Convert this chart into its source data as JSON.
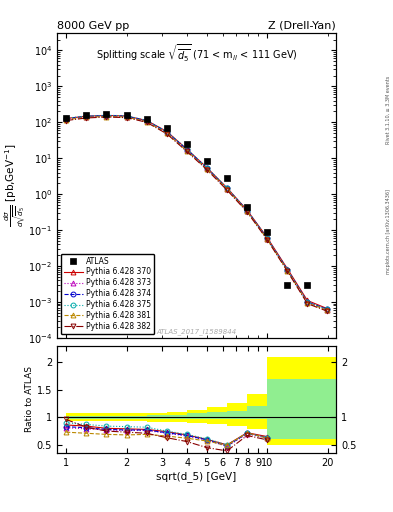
{
  "title_left": "8000 GeV pp",
  "title_right": "Z (Drell-Yan)",
  "plot_title": "Splitting scale $\\sqrt{\\overline{d_5}}$ (71 < m$_{ll}$ < 111 GeV)",
  "ylabel_main": "$\\frac{d\\sigma}{d\\sqrt{d_5}}$ [pb,GeV$^{-1}$]",
  "ylabel_ratio": "Ratio to ATLAS",
  "xlabel": "sqrt(d_5) [GeV]",
  "watermark": "ATLAS_2017_I1589844",
  "right_label": "mcplots.cern.ch [arXiv:1306.3436]",
  "right_label2": "Rivet 3.1.10, ≥ 3.3M events",
  "x_data": [
    1.0,
    1.26,
    1.585,
    2.0,
    2.512,
    3.162,
    3.981,
    5.012,
    6.31,
    7.943,
    10.0,
    12.59,
    15.85,
    19.95
  ],
  "atlas_y": [
    130,
    155,
    170,
    160,
    120,
    70,
    25,
    8.5,
    2.8,
    0.45,
    0.09,
    0.003,
    0.003,
    null
  ],
  "py370_y": [
    128,
    148,
    155,
    150,
    112,
    56,
    18,
    5.5,
    1.5,
    0.36,
    0.062,
    0.0085,
    0.0011,
    0.00065
  ],
  "py373_y": [
    124,
    143,
    150,
    145,
    108,
    53,
    17,
    5.2,
    1.4,
    0.34,
    0.058,
    0.0078,
    0.00098,
    0.0006
  ],
  "py374_y": [
    126,
    146,
    153,
    148,
    110,
    54,
    17.5,
    5.3,
    1.45,
    0.35,
    0.059,
    0.008,
    0.001,
    0.00062
  ],
  "py375_y": [
    130,
    150,
    157,
    152,
    113,
    55,
    18.2,
    5.5,
    1.48,
    0.35,
    0.059,
    0.008,
    0.001,
    0.00062
  ],
  "py381_y": [
    118,
    138,
    145,
    140,
    104,
    50,
    16,
    5.0,
    1.38,
    0.33,
    0.056,
    0.0075,
    0.00095,
    0.00058
  ],
  "py382_y": [
    112,
    132,
    140,
    135,
    100,
    48,
    15.5,
    4.8,
    1.3,
    0.32,
    0.054,
    0.0072,
    0.0009,
    0.00055
  ],
  "ratio370": [
    0.86,
    0.84,
    0.8,
    0.79,
    0.78,
    0.74,
    0.68,
    0.6,
    0.5,
    0.72,
    0.65,
    null,
    null,
    null
  ],
  "ratio373": [
    0.81,
    0.79,
    0.77,
    0.76,
    0.76,
    0.71,
    0.66,
    0.59,
    0.47,
    0.7,
    0.62,
    null,
    null,
    null
  ],
  "ratio374": [
    0.83,
    0.81,
    0.78,
    0.77,
    0.77,
    0.72,
    0.67,
    0.59,
    0.48,
    0.71,
    0.63,
    null,
    null,
    null
  ],
  "ratio375": [
    0.9,
    0.87,
    0.84,
    0.83,
    0.82,
    0.75,
    0.69,
    0.61,
    0.5,
    0.71,
    0.63,
    null,
    null,
    null
  ],
  "ratio381": [
    0.73,
    0.71,
    0.69,
    0.68,
    0.69,
    0.66,
    0.62,
    0.57,
    0.49,
    0.72,
    0.62,
    null,
    null,
    null
  ],
  "ratio382": [
    0.96,
    0.82,
    0.75,
    0.73,
    0.71,
    0.63,
    0.56,
    0.45,
    0.39,
    0.67,
    0.59,
    null,
    null,
    null
  ],
  "band_x": [
    1.0,
    1.26,
    1.585,
    2.0,
    2.512,
    3.162,
    3.981,
    5.012,
    6.31,
    7.943,
    10.0,
    12.59,
    19.95,
    22.0
  ],
  "band_green_lo": [
    0.97,
    0.97,
    0.97,
    0.97,
    0.97,
    0.97,
    0.97,
    0.97,
    0.97,
    0.97,
    0.6,
    0.6,
    0.6,
    0.6
  ],
  "band_green_hi": [
    1.03,
    1.03,
    1.03,
    1.03,
    1.04,
    1.05,
    1.07,
    1.09,
    1.12,
    1.2,
    1.7,
    1.7,
    1.7,
    1.7
  ],
  "band_yellow_lo": [
    0.93,
    0.93,
    0.93,
    0.93,
    0.92,
    0.91,
    0.9,
    0.87,
    0.84,
    0.78,
    0.5,
    0.5,
    0.5,
    0.5
  ],
  "band_yellow_hi": [
    1.07,
    1.07,
    1.07,
    1.07,
    1.08,
    1.1,
    1.14,
    1.19,
    1.26,
    1.42,
    2.1,
    2.1,
    2.1,
    2.1
  ],
  "colors": {
    "py370": "#cc0000",
    "py373": "#bb00bb",
    "py374": "#0000cc",
    "py375": "#00aaaa",
    "py381": "#bb8800",
    "py382": "#880000"
  },
  "xlim": [
    0.9,
    22
  ],
  "ylim_main": [
    0.0001,
    30000.0
  ],
  "ylim_ratio": [
    0.35,
    2.3
  ]
}
